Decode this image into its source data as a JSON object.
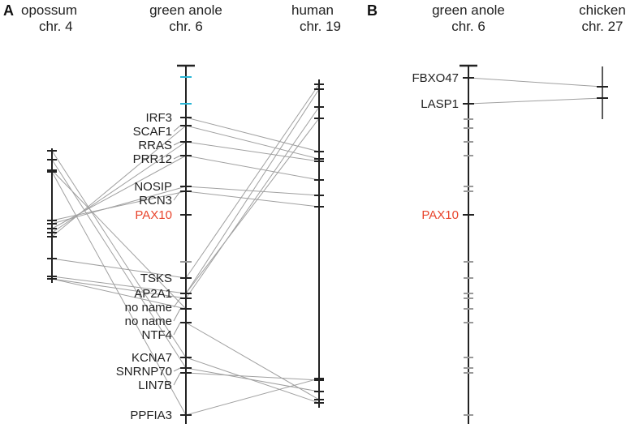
{
  "panel_a": {
    "letter": "A",
    "species": [
      {
        "name": "opossum",
        "chr": "chr. 4"
      },
      {
        "name": "green anole",
        "chr": "chr. 6"
      },
      {
        "name": "human",
        "chr": "chr. 19"
      }
    ],
    "genes": [
      "IRF3",
      "SCAF1",
      "RRAS",
      "PRR12",
      "NOSIP",
      "RCN3",
      "PAX10",
      "TSKS",
      "AP2A1",
      "no name",
      "no name",
      "NTF4",
      "KCNA7",
      "SNRNP70",
      "LIN7B",
      "PPFIA3"
    ]
  },
  "panel_b": {
    "letter": "B",
    "species": [
      {
        "name": "green anole",
        "chr": "chr. 6"
      },
      {
        "name": "chicken",
        "chr": "chr. 27"
      }
    ],
    "genes": [
      "FBXO47",
      "LASP1",
      "PAX10"
    ]
  },
  "colors": {
    "highlight": "#e8432b",
    "cyan_tick": "#29b6d6",
    "grey_tick": "#999999",
    "link": "#a0a0a0",
    "axis": "#222222"
  }
}
